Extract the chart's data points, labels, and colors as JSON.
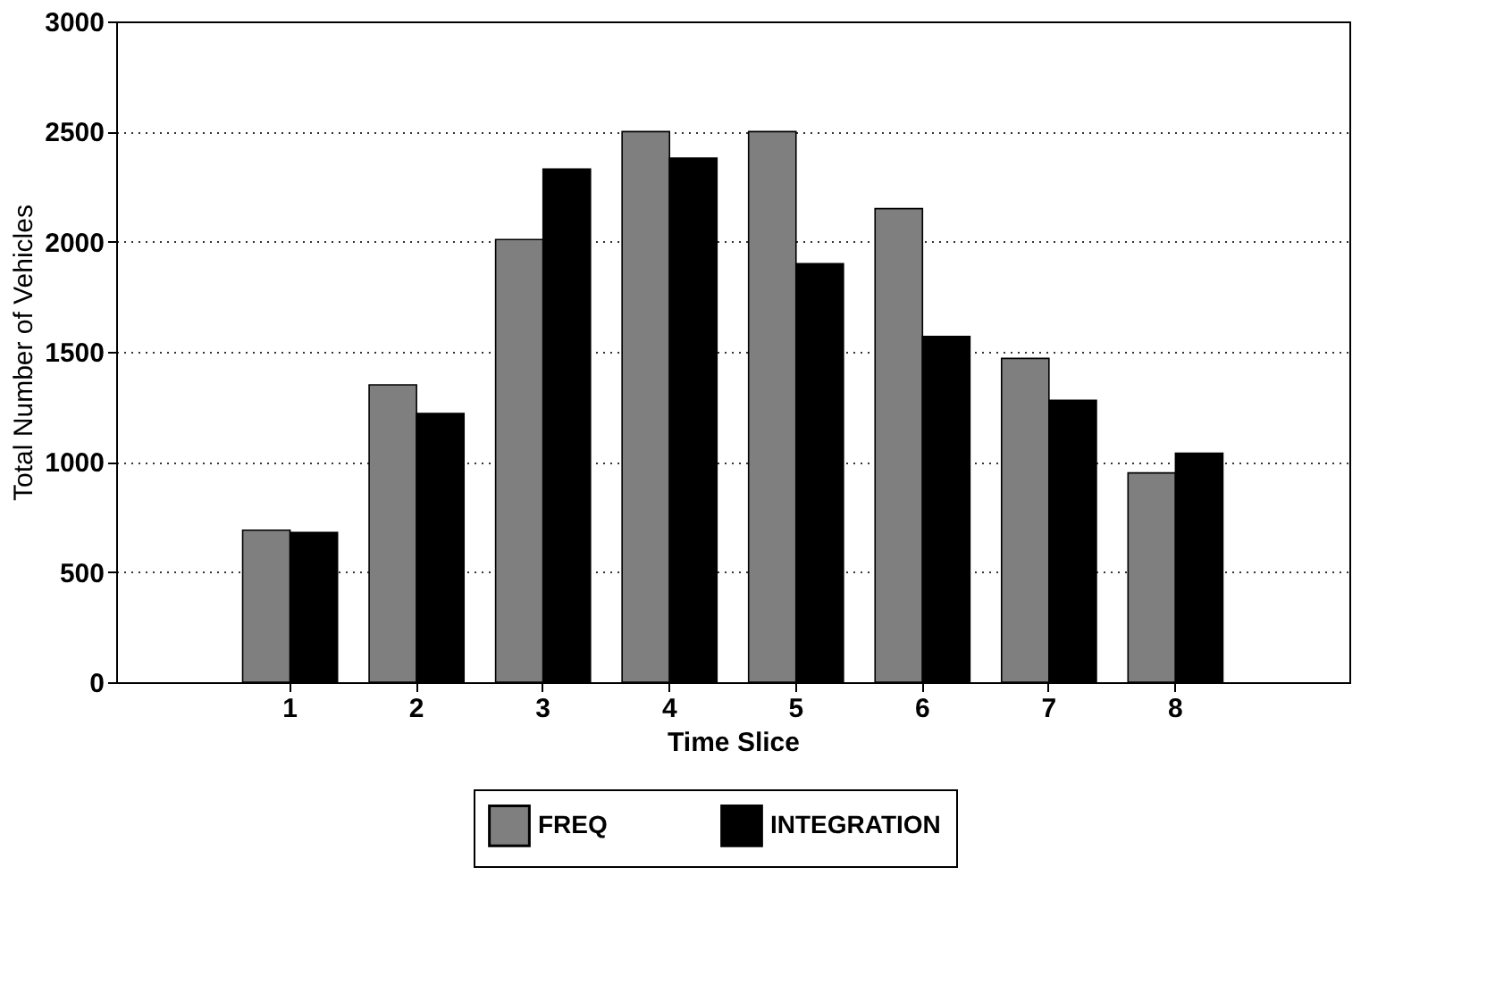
{
  "chart_data": {
    "type": "bar",
    "xlabel": "Time Slice",
    "ylabel": "Total Number of Vehicles",
    "categories": [
      "1",
      "2",
      "3",
      "4",
      "5",
      "6",
      "7",
      "8"
    ],
    "series": [
      {
        "name": "FREQ",
        "color": "#7f7f7f",
        "values": [
          690,
          1350,
          2010,
          2500,
          2500,
          2150,
          1470,
          950
        ]
      },
      {
        "name": "INTEGRATION",
        "color": "#000000",
        "values": [
          680,
          1220,
          2330,
          2380,
          1900,
          1570,
          1280,
          1040
        ]
      }
    ],
    "ylim": [
      0,
      3000
    ],
    "yticks": [
      0,
      500,
      1000,
      1500,
      2000,
      2500,
      3000
    ],
    "grid": "y",
    "line_style": "dotted",
    "legend": "bottom"
  }
}
